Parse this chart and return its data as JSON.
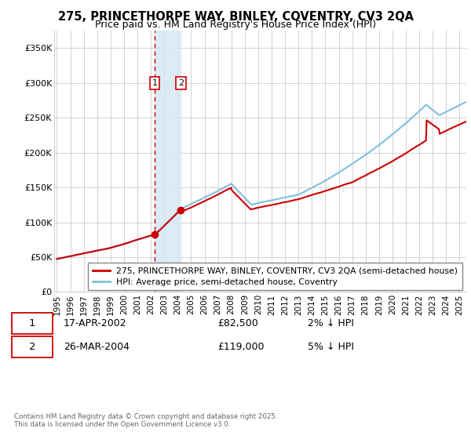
{
  "title": "275, PRINCETHORPE WAY, BINLEY, COVENTRY, CV3 2QA",
  "subtitle": "Price paid vs. HM Land Registry's House Price Index (HPI)",
  "ylabel_ticks": [
    "£0",
    "£50K",
    "£100K",
    "£150K",
    "£200K",
    "£250K",
    "£300K",
    "£350K"
  ],
  "ytick_values": [
    0,
    50000,
    100000,
    150000,
    200000,
    250000,
    300000,
    350000
  ],
  "ylim": [
    0,
    375000
  ],
  "xlim_start": 1994.8,
  "xlim_end": 2025.5,
  "transaction1_date": 2002.29,
  "transaction2_date": 2004.23,
  "transaction1_price": 82500,
  "transaction2_price": 119000,
  "hpi_color": "#7fbfdd",
  "price_color": "#cc0000",
  "vspan_color": "#d4e8f5",
  "vline1_color": "#cc0000",
  "legend_line1": "275, PRINCETHORPE WAY, BINLEY, COVENTRY, CV3 2QA (semi-detached house)",
  "legend_line2": "HPI: Average price, semi-detached house, Coventry",
  "table_row1_num": "1",
  "table_row1_date": "17-APR-2002",
  "table_row1_price": "£82,500",
  "table_row1_hpi": "2% ↓ HPI",
  "table_row2_num": "2",
  "table_row2_date": "26-MAR-2004",
  "table_row2_price": "£119,000",
  "table_row2_hpi": "5% ↓ HPI",
  "footnote1": "Contains HM Land Registry data © Crown copyright and database right 2025.",
  "footnote2": "This data is licensed under the Open Government Licence v3.0.",
  "background_color": "#ffffff",
  "grid_color": "#cccccc",
  "xticks": [
    1995,
    1996,
    1997,
    1998,
    1999,
    2000,
    2001,
    2002,
    2003,
    2004,
    2005,
    2006,
    2007,
    2008,
    2009,
    2010,
    2011,
    2012,
    2013,
    2014,
    2015,
    2016,
    2017,
    2018,
    2019,
    2020,
    2021,
    2022,
    2023,
    2024,
    2025
  ]
}
